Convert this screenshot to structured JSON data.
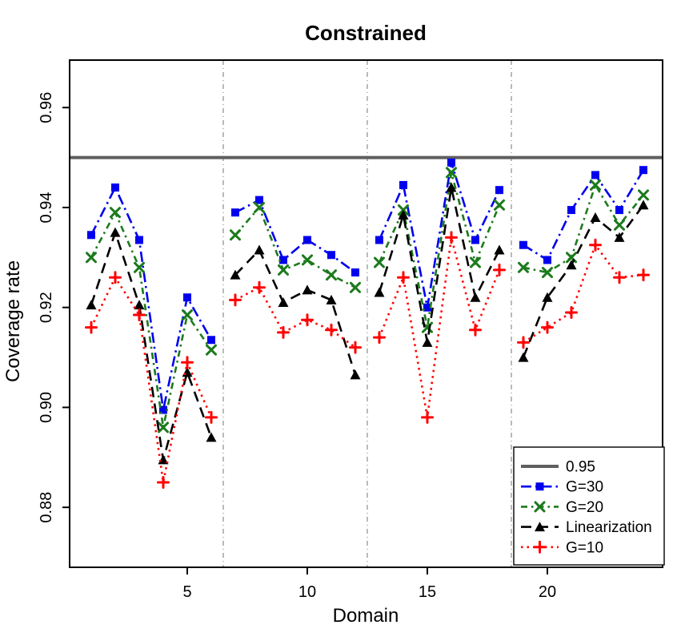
{
  "chart_data": {
    "type": "line",
    "title": "Constrained",
    "xlabel": "Domain",
    "ylabel": "Coverage rate",
    "xlim": [
      0.1,
      24.8
    ],
    "ylim": [
      0.868,
      0.9695
    ],
    "x_ticks": [
      5,
      10,
      15,
      20
    ],
    "y_ticks": [
      0.88,
      0.9,
      0.92,
      0.94,
      0.96
    ],
    "grid": "vertical dashed group separators only",
    "group_separators": [
      6.5,
      12.5,
      18.5
    ],
    "reference_line": {
      "label": "0.95",
      "value": 0.95,
      "color": "#5f5f5f"
    },
    "x": [
      1,
      2,
      3,
      4,
      5,
      6,
      7,
      8,
      9,
      10,
      11,
      12,
      13,
      14,
      15,
      16,
      17,
      18,
      19,
      20,
      21,
      22,
      23,
      24
    ],
    "series": [
      {
        "name": "G=30",
        "color": "#0000ee",
        "marker": "square",
        "dash": "dashdot",
        "values": [
          0.9345,
          0.944,
          0.9335,
          0.8995,
          0.922,
          0.9135,
          0.939,
          0.9415,
          0.9295,
          0.9335,
          0.9305,
          0.927,
          0.9335,
          0.9445,
          0.92,
          0.949,
          0.9335,
          0.9435,
          0.9325,
          0.9295,
          0.9395,
          0.9465,
          0.9395,
          0.9475
        ]
      },
      {
        "name": "G=20",
        "color": "#1c7a1c",
        "marker": "x",
        "dash": "dashdot2",
        "values": [
          0.93,
          0.939,
          0.928,
          0.896,
          0.9185,
          0.9115,
          0.9345,
          0.94,
          0.9275,
          0.9295,
          0.9265,
          0.924,
          0.929,
          0.9395,
          0.916,
          0.947,
          0.929,
          0.9405,
          0.928,
          0.927,
          0.93,
          0.9445,
          0.9365,
          0.9425
        ]
      },
      {
        "name": "Linearization",
        "color": "#000000",
        "marker": "triangle",
        "dash": "longdash",
        "values": [
          0.9205,
          0.935,
          0.9205,
          0.8895,
          0.907,
          0.894,
          0.9265,
          0.9315,
          0.921,
          0.9235,
          0.9215,
          0.9065,
          0.923,
          0.9385,
          0.913,
          0.944,
          0.922,
          0.9315,
          0.91,
          0.922,
          0.9285,
          0.938,
          0.934,
          0.9405
        ]
      },
      {
        "name": "G=10",
        "color": "#ff0000",
        "marker": "plus",
        "dash": "dotted",
        "values": [
          0.916,
          0.926,
          0.9185,
          0.885,
          0.909,
          0.898,
          0.9215,
          0.924,
          0.915,
          0.9175,
          0.9155,
          0.912,
          0.914,
          0.926,
          0.898,
          0.934,
          0.9155,
          0.9275,
          0.913,
          0.916,
          0.919,
          0.9325,
          0.926,
          0.9265
        ]
      }
    ],
    "legend": {
      "position": "bottom-right",
      "entries": [
        "0.95",
        "G=30",
        "G=20",
        "Linearization",
        "G=10"
      ]
    }
  }
}
